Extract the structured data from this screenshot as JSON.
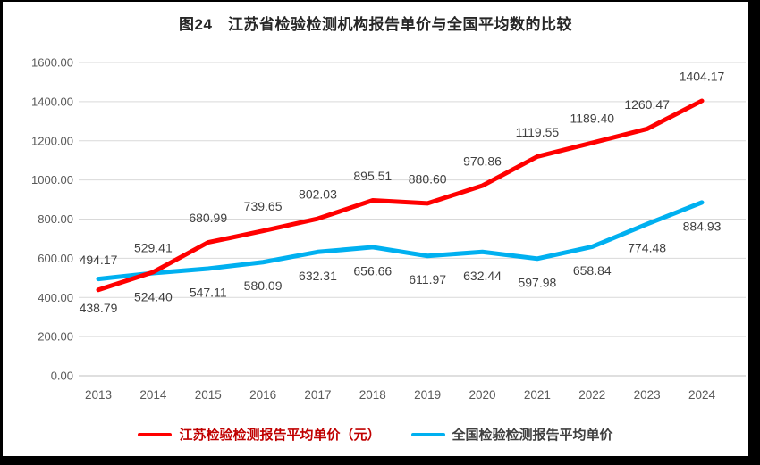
{
  "chart_data": {
    "type": "line",
    "title": "图24　江苏省检验检测机构报告单价与全国平均数的比较",
    "categories": [
      "2013",
      "2014",
      "2015",
      "2016",
      "2017",
      "2018",
      "2019",
      "2020",
      "2021",
      "2022",
      "2023",
      "2024"
    ],
    "series": [
      {
        "name": "全国检验检测报告平均单价",
        "color": "#00b0f0",
        "values": [
          494.17,
          524.4,
          547.11,
          580.09,
          632.31,
          656.66,
          611.97,
          632.44,
          597.98,
          658.84,
          774.48,
          884.93
        ],
        "label_side": "below",
        "first_label_side": "above"
      },
      {
        "name": "江苏检验检测报告平均单价（元）",
        "color": "#ff0000",
        "values": [
          438.79,
          529.41,
          680.99,
          739.65,
          802.03,
          895.51,
          880.6,
          970.86,
          1119.55,
          1189.4,
          1260.47,
          1404.17
        ],
        "label_side": "above",
        "first_label_side": "below"
      }
    ],
    "ylim": [
      0,
      1600
    ],
    "ytick_step": 200,
    "ytick_format_decimals": 2,
    "grid": true,
    "legend_position": "bottom",
    "colors": {
      "gridline": "#d9d9d9",
      "axis_line": "#bfbfbf",
      "tick_label": "#595959",
      "data_label": "#404040"
    }
  },
  "legend": {
    "items": [
      {
        "label": "江苏检验检测报告平均单价（元）",
        "swatch_color": "#ff0000",
        "text_color": "#c00000"
      },
      {
        "label": "全国检验检测报告平均单价",
        "swatch_color": "#00b0f0",
        "text_color": "#404040"
      }
    ]
  }
}
